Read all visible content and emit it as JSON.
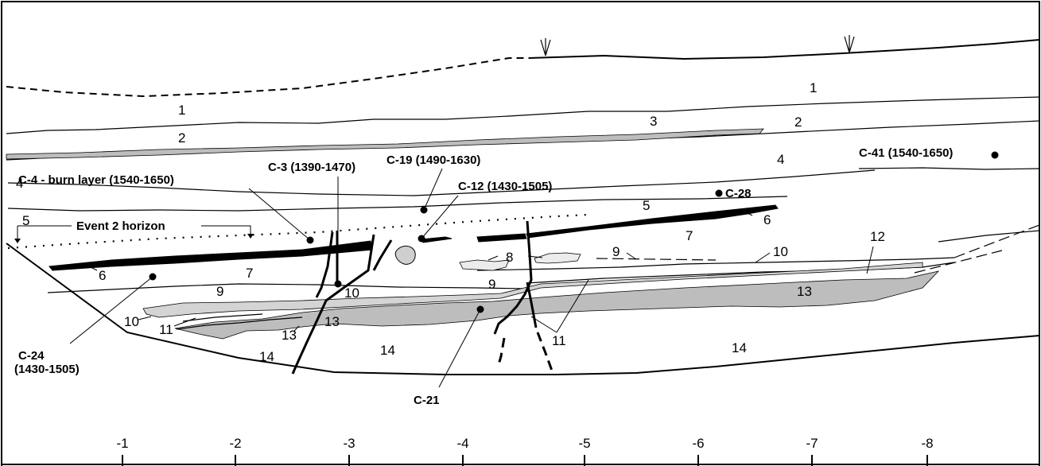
{
  "units": [
    "1",
    "1",
    "2",
    "2",
    "3",
    "4",
    "4",
    "5",
    "5",
    "6",
    "6",
    "7",
    "7",
    "8",
    "9",
    "9",
    "9",
    "10",
    "10",
    "10",
    "11",
    "11",
    "12",
    "13",
    "13",
    "13",
    "14",
    "14",
    "14"
  ],
  "samples": {
    "c3": "C-3 (1390-1470)",
    "c4": "C-4 - burn layer (1540-1650)",
    "c19": "C-19 (1490-1630)",
    "c12": "C-12 (1430-1505)",
    "c41": "C-41 (1540-1650)",
    "c28": "C-28",
    "c24_line1": "C-24",
    "c24_line2": "(1430-1505)",
    "c21": "C-21"
  },
  "event_horizon": "Event 2 horizon",
  "scale_ticks": [
    "-1",
    "-2",
    "-3",
    "-4",
    "-5",
    "-6",
    "-7",
    "-8"
  ],
  "colors": {
    "shaded_unit": "#bdbdbd",
    "light_unit": "#d4d4d4",
    "line": "#000000"
  }
}
